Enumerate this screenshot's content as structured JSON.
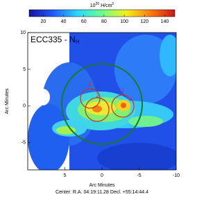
{
  "chart_data": {
    "type": "image",
    "title": "ECC335 - N",
    "title_subscript": "H",
    "xlabel": "Arc Minutes",
    "ylabel": "Arc Minutes",
    "caption": "Center: R.A. 04:19:11.28   Decl. +55:14:44.4",
    "xlim": [
      10,
      -10
    ],
    "xticks": [
      5,
      0,
      -5,
      -10
    ],
    "ylim": [
      -8.7,
      10
    ],
    "yticks": [
      -5,
      0,
      5,
      10
    ],
    "colorbar": {
      "label_base": "10",
      "label_exp": "20",
      "label_unit": " H/cm",
      "label_unit_exp": "2",
      "lim": [
        6,
        150
      ],
      "ticks": [
        20,
        40,
        60,
        80,
        100,
        120,
        140
      ],
      "colors": [
        "#1a10a0",
        "#1f5cff",
        "#28d8ff",
        "#6dff8a",
        "#f4f01a",
        "#ff7a10",
        "#c81818"
      ]
    },
    "regions": [
      "1",
      "2",
      "3"
    ]
  }
}
